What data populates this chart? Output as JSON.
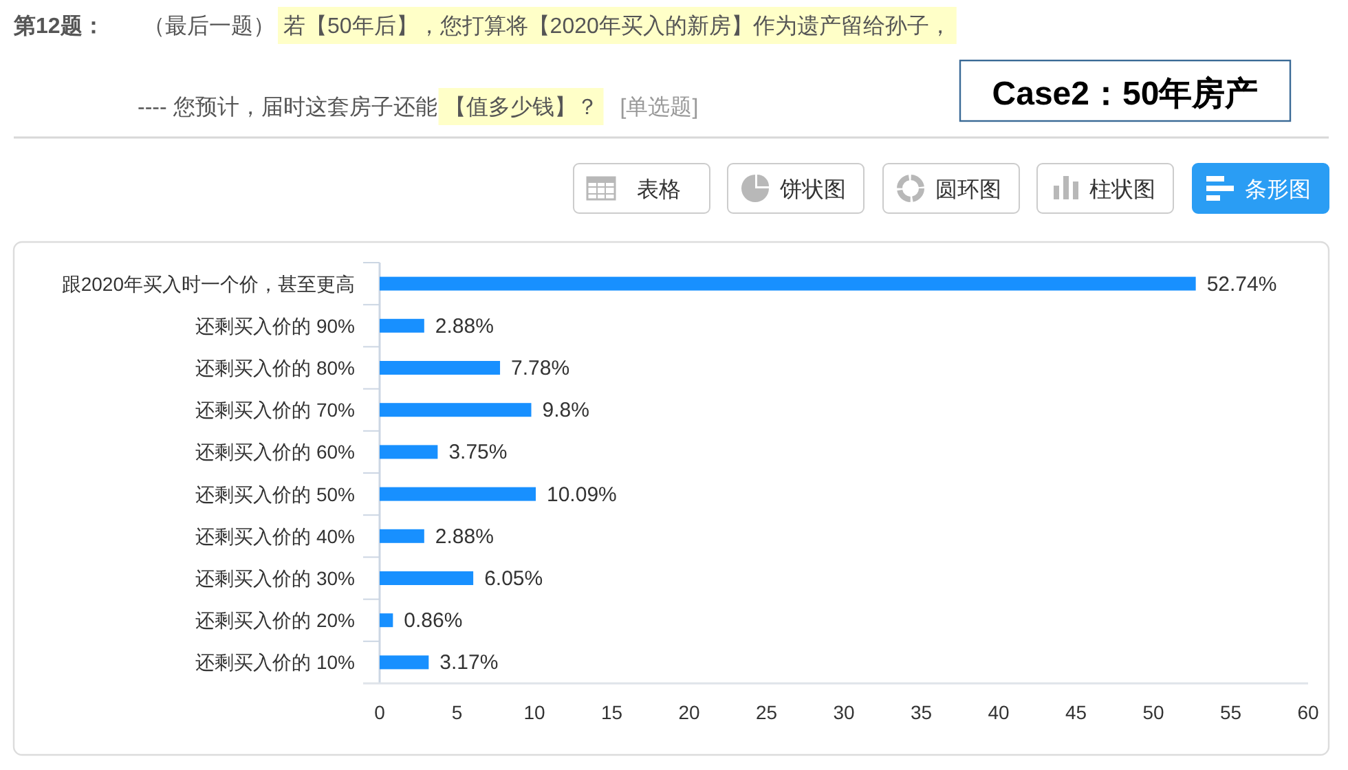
{
  "chart_data": {
    "type": "bar",
    "orientation": "horizontal",
    "title": "第12题：",
    "subtitle": "（最后一题）",
    "annotations": [
      "若【50年后】，您打算将【2020年买入的新房】作为遗产留给孙子，",
      "---- 您预计，届时这套房子还能",
      "【值多少钱】？",
      "[单选题]",
      "Case2：50年房产",
      "表格",
      "饼状图",
      "圆环图",
      "柱状图",
      "条形图"
    ],
    "categories": [
      "跟2020年买入时一个价，甚至更高",
      "还剩买入价的 90%",
      "还剩买入价的 80%",
      "还剩买入价的 70%",
      "还剩买入价的 60%",
      "还剩买入价的 50%",
      "还剩买入价的 40%",
      "还剩买入价的 30%",
      "还剩买入价的 20%",
      "还剩买入价的 10%"
    ],
    "values": [
      52.74,
      2.88,
      7.78,
      9.8,
      3.75,
      10.09,
      2.88,
      6.05,
      0.86,
      3.17
    ],
    "value_labels": [
      "52.74%",
      "2.88%",
      "7.78%",
      "9.8%",
      "3.75%",
      "10.09%",
      "2.88%",
      "6.05%",
      "0.86%",
      "3.17%"
    ],
    "color": "#1890ff",
    "xlim": [
      0,
      60
    ],
    "xticks": [
      0,
      5,
      10,
      15,
      20,
      25,
      30,
      35,
      40,
      45,
      50,
      55,
      60
    ]
  }
}
